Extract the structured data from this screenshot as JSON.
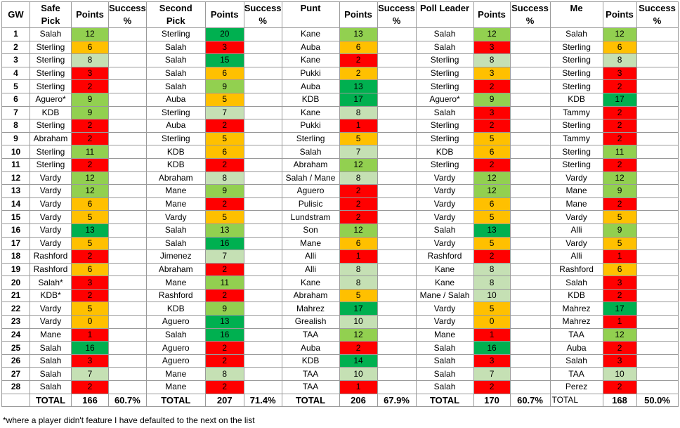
{
  "header": {
    "gw": "GW",
    "groups": [
      {
        "name_line1": "Safe",
        "name_line2": "Pick",
        "points": "Points",
        "success_line1": "Success",
        "success_line2": "%"
      },
      {
        "name_line1": "Second",
        "name_line2": "Pick",
        "points": "Points",
        "success_line1": "Success",
        "success_line2": "%"
      },
      {
        "name_line1": "Punt",
        "name_line2": "",
        "points": "Points",
        "success_line1": "Success",
        "success_line2": "%"
      },
      {
        "name_line1": "Poll Leader",
        "name_line2": "",
        "points": "Points",
        "success_line1": "Success",
        "success_line2": "%"
      },
      {
        "name_line1": "Me",
        "name_line2": "",
        "points": "Points",
        "success_line1": "Success",
        "success_line2": "%"
      }
    ]
  },
  "colors": {
    "dg": "#00b050",
    "lg": "#92d050",
    "pg": "#c5e0b4",
    "am": "#ffc000",
    "rd": "#ff0000"
  },
  "rows": [
    {
      "gw": "1",
      "cells": [
        [
          "Salah",
          "12",
          "lg"
        ],
        [
          "Sterling",
          "20",
          "dg"
        ],
        [
          "Kane",
          "13",
          "lg"
        ],
        [
          "Salah",
          "12",
          "lg"
        ],
        [
          "Salah",
          "12",
          "lg"
        ]
      ]
    },
    {
      "gw": "2",
      "cells": [
        [
          "Sterling",
          "6",
          "am"
        ],
        [
          "Salah",
          "3",
          "rd"
        ],
        [
          "Auba",
          "6",
          "am"
        ],
        [
          "Salah",
          "3",
          "rd"
        ],
        [
          "Sterling",
          "6",
          "am"
        ]
      ]
    },
    {
      "gw": "3",
      "cells": [
        [
          "Sterling",
          "8",
          "pg"
        ],
        [
          "Salah",
          "15",
          "dg"
        ],
        [
          "Kane",
          "2",
          "rd"
        ],
        [
          "Sterling",
          "8",
          "pg"
        ],
        [
          "Sterling",
          "8",
          "pg"
        ]
      ]
    },
    {
      "gw": "4",
      "cells": [
        [
          "Sterling",
          "3",
          "rd"
        ],
        [
          "Salah",
          "6",
          "am"
        ],
        [
          "Pukki",
          "2",
          "am"
        ],
        [
          "Sterling",
          "3",
          "am"
        ],
        [
          "Sterling",
          "3",
          "rd"
        ]
      ]
    },
    {
      "gw": "5",
      "cells": [
        [
          "Sterling",
          "2",
          "rd"
        ],
        [
          "Salah",
          "9",
          "lg"
        ],
        [
          "Auba",
          "13",
          "dg"
        ],
        [
          "Sterling",
          "2",
          "rd"
        ],
        [
          "Sterling",
          "2",
          "rd"
        ]
      ]
    },
    {
      "gw": "6",
      "cells": [
        [
          "Aguero*",
          "9",
          "lg"
        ],
        [
          "Auba",
          "5",
          "am"
        ],
        [
          "KDB",
          "17",
          "dg"
        ],
        [
          "Aguero*",
          "9",
          "lg"
        ],
        [
          "KDB",
          "17",
          "dg"
        ]
      ]
    },
    {
      "gw": "7",
      "cells": [
        [
          "KDB",
          "9",
          "lg"
        ],
        [
          "Sterling",
          "7",
          "pg"
        ],
        [
          "Kane",
          "8",
          "pg"
        ],
        [
          "Salah",
          "3",
          "rd"
        ],
        [
          "Tammy",
          "2",
          "rd"
        ]
      ]
    },
    {
      "gw": "8",
      "cells": [
        [
          "Sterling",
          "2",
          "rd"
        ],
        [
          "Auba",
          "2",
          "rd"
        ],
        [
          "Pukki",
          "1",
          "rd"
        ],
        [
          "Sterling",
          "2",
          "rd"
        ],
        [
          "Sterling",
          "2",
          "rd"
        ]
      ]
    },
    {
      "gw": "9",
      "cells": [
        [
          "Abraham",
          "2",
          "rd"
        ],
        [
          "Sterling",
          "5",
          "am"
        ],
        [
          "Sterling",
          "5",
          "am"
        ],
        [
          "Sterling",
          "5",
          "am"
        ],
        [
          "Tammy",
          "2",
          "rd"
        ]
      ]
    },
    {
      "gw": "10",
      "cells": [
        [
          "Sterling",
          "11",
          "lg"
        ],
        [
          "KDB",
          "6",
          "am"
        ],
        [
          "Salah",
          "7",
          "pg"
        ],
        [
          "KDB",
          "6",
          "am"
        ],
        [
          "Sterling",
          "11",
          "lg"
        ]
      ]
    },
    {
      "gw": "11",
      "cells": [
        [
          "Sterling",
          "2",
          "rd"
        ],
        [
          "KDB",
          "2",
          "rd"
        ],
        [
          "Abraham",
          "12",
          "lg"
        ],
        [
          "Sterling",
          "2",
          "rd"
        ],
        [
          "Sterling",
          "2",
          "rd"
        ]
      ]
    },
    {
      "gw": "12",
      "cells": [
        [
          "Vardy",
          "12",
          "lg"
        ],
        [
          "Abraham",
          "8",
          "pg"
        ],
        [
          "Salah / Mane",
          "8",
          "pg"
        ],
        [
          "Vardy",
          "12",
          "lg"
        ],
        [
          "Vardy",
          "12",
          "lg"
        ]
      ]
    },
    {
      "gw": "13",
      "cells": [
        [
          "Vardy",
          "12",
          "lg"
        ],
        [
          "Mane",
          "9",
          "lg"
        ],
        [
          "Aguero",
          "2",
          "rd"
        ],
        [
          "Vardy",
          "12",
          "lg"
        ],
        [
          "Mane",
          "9",
          "lg"
        ]
      ]
    },
    {
      "gw": "14",
      "cells": [
        [
          "Vardy",
          "6",
          "am"
        ],
        [
          "Mane",
          "2",
          "rd"
        ],
        [
          "Pulisic",
          "2",
          "rd"
        ],
        [
          "Vardy",
          "6",
          "am"
        ],
        [
          "Mane",
          "2",
          "rd"
        ]
      ]
    },
    {
      "gw": "15",
      "cells": [
        [
          "Vardy",
          "5",
          "am"
        ],
        [
          "Vardy",
          "5",
          "am"
        ],
        [
          "Lundstram",
          "2",
          "rd"
        ],
        [
          "Vardy",
          "5",
          "am"
        ],
        [
          "Vardy",
          "5",
          "am"
        ]
      ]
    },
    {
      "gw": "16",
      "cells": [
        [
          "Vardy",
          "13",
          "dg"
        ],
        [
          "Salah",
          "13",
          "lg"
        ],
        [
          "Son",
          "12",
          "lg"
        ],
        [
          "Salah",
          "13",
          "dg"
        ],
        [
          "Alli",
          "9",
          "lg"
        ]
      ]
    },
    {
      "gw": "17",
      "cells": [
        [
          "Vardy",
          "5",
          "am"
        ],
        [
          "Salah",
          "16",
          "dg"
        ],
        [
          "Mane",
          "6",
          "am"
        ],
        [
          "Vardy",
          "5",
          "am"
        ],
        [
          "Vardy",
          "5",
          "am"
        ]
      ]
    },
    {
      "gw": "18",
      "cells": [
        [
          "Rashford",
          "2",
          "rd"
        ],
        [
          "Jimenez",
          "7",
          "pg"
        ],
        [
          "Alli",
          "1",
          "rd"
        ],
        [
          "Rashford",
          "2",
          "rd"
        ],
        [
          "Alli",
          "1",
          "rd"
        ]
      ]
    },
    {
      "gw": "19",
      "cells": [
        [
          "Rashford",
          "6",
          "am"
        ],
        [
          "Abraham",
          "2",
          "rd"
        ],
        [
          "Alli",
          "8",
          "pg"
        ],
        [
          "Kane",
          "8",
          "pg"
        ],
        [
          "Rashford",
          "6",
          "am"
        ]
      ]
    },
    {
      "gw": "20",
      "cells": [
        [
          "Salah*",
          "3",
          "rd"
        ],
        [
          "Mane",
          "11",
          "lg"
        ],
        [
          "Kane",
          "8",
          "pg"
        ],
        [
          "Kane",
          "8",
          "pg"
        ],
        [
          "Salah",
          "3",
          "rd"
        ]
      ]
    },
    {
      "gw": "21",
      "cells": [
        [
          "KDB*",
          "2",
          "rd"
        ],
        [
          "Rashford",
          "2",
          "rd"
        ],
        [
          "Abraham",
          "5",
          "am"
        ],
        [
          "Mane / Salah",
          "10",
          "pg"
        ],
        [
          "KDB",
          "2",
          "rd"
        ]
      ]
    },
    {
      "gw": "22",
      "cells": [
        [
          "Vardy",
          "5",
          "am"
        ],
        [
          "KDB",
          "9",
          "lg"
        ],
        [
          "Mahrez",
          "17",
          "dg"
        ],
        [
          "Vardy",
          "5",
          "am"
        ],
        [
          "Mahrez",
          "17",
          "dg"
        ]
      ]
    },
    {
      "gw": "23",
      "cells": [
        [
          "Vardy",
          "0",
          "am"
        ],
        [
          "Aguero",
          "13",
          "dg"
        ],
        [
          "Grealish",
          "10",
          "pg"
        ],
        [
          "Vardy",
          "0",
          "am"
        ],
        [
          "Mahrez",
          "1",
          "rd"
        ]
      ]
    },
    {
      "gw": "24",
      "cells": [
        [
          "Mane",
          "1",
          "rd"
        ],
        [
          "Salah",
          "16",
          "dg"
        ],
        [
          "TAA",
          "12",
          "lg"
        ],
        [
          "Mane",
          "1",
          "rd"
        ],
        [
          "TAA",
          "12",
          "lg"
        ]
      ]
    },
    {
      "gw": "25",
      "cells": [
        [
          "Salah",
          "16",
          "dg"
        ],
        [
          "Aguero",
          "2",
          "rd"
        ],
        [
          "Auba",
          "2",
          "rd"
        ],
        [
          "Salah",
          "16",
          "dg"
        ],
        [
          "Auba",
          "2",
          "rd"
        ]
      ]
    },
    {
      "gw": "26",
      "cells": [
        [
          "Salah",
          "3",
          "rd"
        ],
        [
          "Aguero",
          "2",
          "rd"
        ],
        [
          "KDB",
          "14",
          "dg"
        ],
        [
          "Salah",
          "3",
          "rd"
        ],
        [
          "Salah",
          "3",
          "rd"
        ]
      ]
    },
    {
      "gw": "27",
      "cells": [
        [
          "Salah",
          "7",
          "pg"
        ],
        [
          "Mane",
          "8",
          "pg"
        ],
        [
          "TAA",
          "10",
          "pg"
        ],
        [
          "Salah",
          "7",
          "pg"
        ],
        [
          "TAA",
          "10",
          "pg"
        ]
      ]
    },
    {
      "gw": "28",
      "cells": [
        [
          "Salah",
          "2",
          "rd"
        ],
        [
          "Mane",
          "2",
          "rd"
        ],
        [
          "TAA",
          "1",
          "rd"
        ],
        [
          "Salah",
          "2",
          "rd"
        ],
        [
          "Perez",
          "2",
          "rd"
        ]
      ]
    }
  ],
  "totals": {
    "label": "TOTAL",
    "groups": [
      {
        "label": "TOTAL",
        "points": "166",
        "success": "60.7%"
      },
      {
        "label": "TOTAL",
        "points": "207",
        "success": "71.4%"
      },
      {
        "label": "TOTAL",
        "points": "206",
        "success": "67.9%"
      },
      {
        "label": "TOTAL",
        "points": "170",
        "success": "60.7%"
      },
      {
        "label": "TOTAL",
        "points": "168",
        "success": "50.0%"
      }
    ]
  },
  "footnote": "*where a player didn't feature I have defaulted to the next on the list"
}
